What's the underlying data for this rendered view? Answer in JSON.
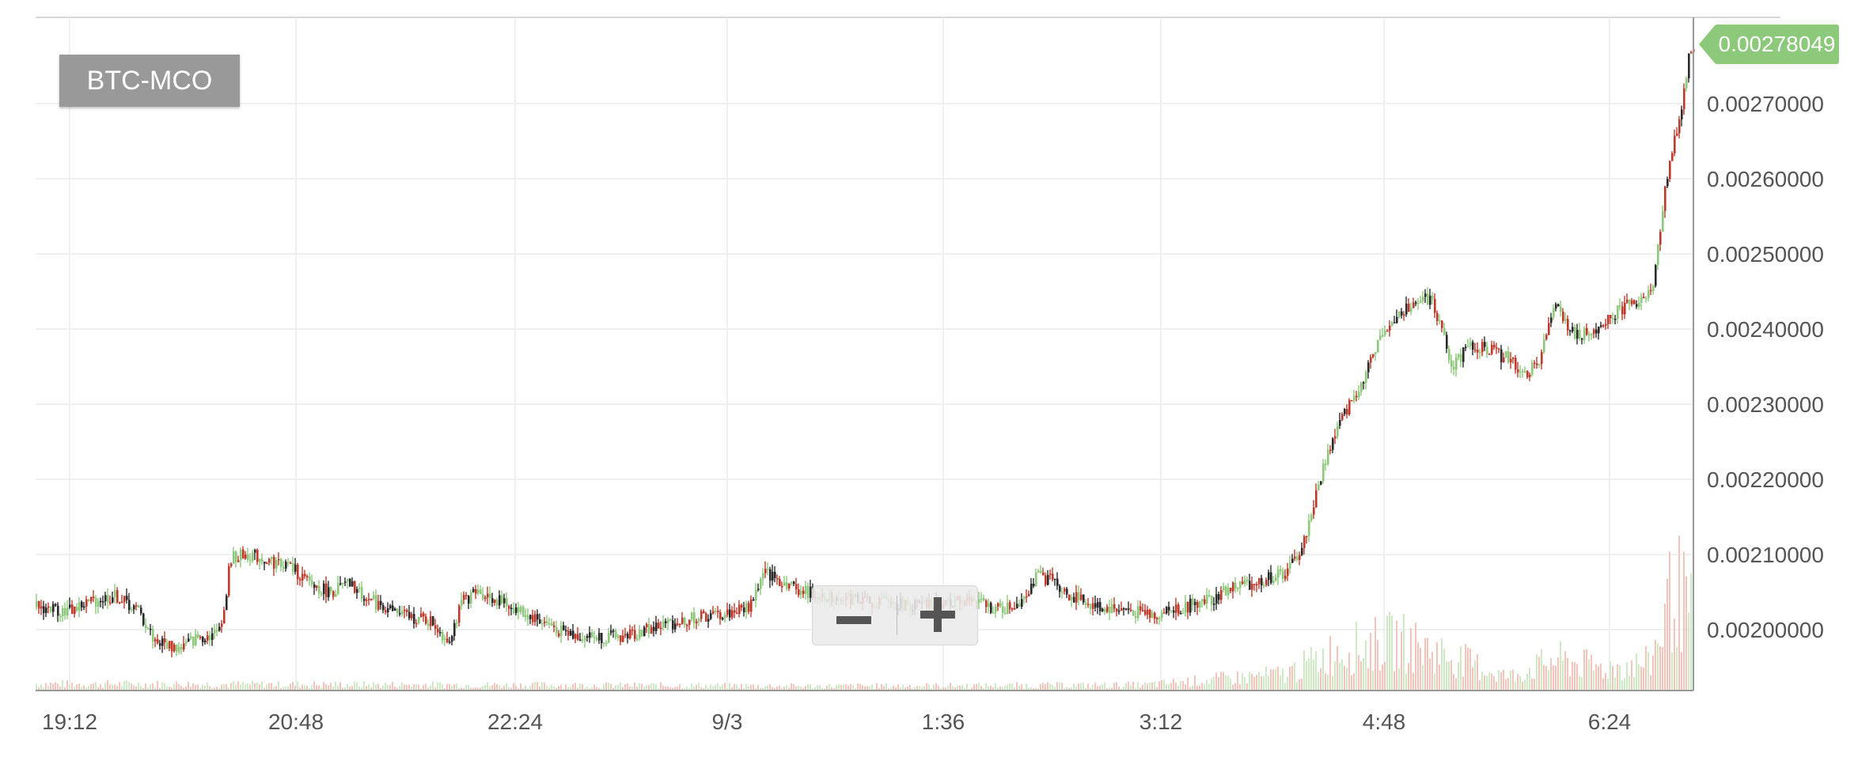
{
  "chart_data": {
    "type": "candlestick",
    "title": "BTC-MCO",
    "last_price": "0.00278049",
    "x_tick_labels": [
      "19:12",
      "20:48",
      "22:24",
      "9/3",
      "1:36",
      "3:12",
      "4:48",
      "6:24"
    ],
    "y_tick_labels": [
      "0.00200000",
      "0.00210000",
      "0.00220000",
      "0.00230000",
      "0.00240000",
      "0.00250000",
      "0.00260000",
      "0.00270000"
    ],
    "ylim": [
      0.00192,
      0.00282
    ],
    "grid": true,
    "colors": {
      "up": "#8cc97a",
      "down": "#c0392b",
      "flat": "#2a2a2a",
      "volume_up": "#cfe8c6",
      "volume_down": "#f2c4bc",
      "axis": "#999999",
      "grid": "#ececec"
    },
    "price_path": [
      [
        0,
        0.00203
      ],
      [
        40,
        0.002025
      ],
      [
        70,
        0.002038
      ],
      [
        100,
        0.002045
      ],
      [
        128,
        0.002025
      ],
      [
        150,
        0.001985
      ],
      [
        180,
        0.001975
      ],
      [
        205,
        0.00199
      ],
      [
        228,
        0.001995
      ],
      [
        238,
        0.00203
      ],
      [
        245,
        0.002095
      ],
      [
        268,
        0.0021
      ],
      [
        300,
        0.00209
      ],
      [
        320,
        0.002085
      ],
      [
        345,
        0.00206
      ],
      [
        370,
        0.00205
      ],
      [
        395,
        0.00206
      ],
      [
        420,
        0.00204
      ],
      [
        460,
        0.00202
      ],
      [
        500,
        0.00201
      ],
      [
        520,
        0.001985
      ],
      [
        540,
        0.00204
      ],
      [
        560,
        0.00205
      ],
      [
        590,
        0.002035
      ],
      [
        620,
        0.00202
      ],
      [
        650,
        0.002005
      ],
      [
        670,
        0.001995
      ],
      [
        700,
        0.00199
      ],
      [
        740,
        0.00199
      ],
      [
        790,
        0.002005
      ],
      [
        830,
        0.002015
      ],
      [
        870,
        0.00202
      ],
      [
        900,
        0.00203
      ],
      [
        920,
        0.002075
      ],
      [
        940,
        0.002065
      ],
      [
        970,
        0.00205
      ],
      [
        1000,
        0.002045
      ],
      [
        1040,
        0.00204
      ],
      [
        1080,
        0.002035
      ],
      [
        1120,
        0.00203
      ],
      [
        1160,
        0.00204
      ],
      [
        1190,
        0.002035
      ],
      [
        1220,
        0.002025
      ],
      [
        1240,
        0.002035
      ],
      [
        1265,
        0.00207
      ],
      [
        1285,
        0.002065
      ],
      [
        1305,
        0.002045
      ],
      [
        1340,
        0.00203
      ],
      [
        1380,
        0.002025
      ],
      [
        1415,
        0.00202
      ],
      [
        1450,
        0.00203
      ],
      [
        1485,
        0.00204
      ],
      [
        1510,
        0.002055
      ],
      [
        1550,
        0.002065
      ],
      [
        1580,
        0.002075
      ],
      [
        1600,
        0.00211
      ],
      [
        1615,
        0.00217
      ],
      [
        1630,
        0.00223
      ],
      [
        1645,
        0.00227
      ],
      [
        1660,
        0.0023
      ],
      [
        1680,
        0.00234
      ],
      [
        1700,
        0.0024
      ],
      [
        1720,
        0.00242
      ],
      [
        1745,
        0.00244
      ],
      [
        1762,
        0.00244
      ],
      [
        1775,
        0.0024
      ],
      [
        1790,
        0.00235
      ],
      [
        1810,
        0.00238
      ],
      [
        1830,
        0.002375
      ],
      [
        1860,
        0.00236
      ],
      [
        1880,
        0.00234
      ],
      [
        1900,
        0.00236
      ],
      [
        1918,
        0.00243
      ],
      [
        1930,
        0.00241
      ],
      [
        1950,
        0.00239
      ],
      [
        1970,
        0.0024
      ],
      [
        1990,
        0.00242
      ],
      [
        2010,
        0.00243
      ],
      [
        2030,
        0.00244
      ],
      [
        2042,
        0.00246
      ],
      [
        2050,
        0.00251
      ],
      [
        2058,
        0.00259
      ],
      [
        2068,
        0.00264
      ],
      [
        2078,
        0.00269
      ],
      [
        2088,
        0.00276
      ],
      [
        2096,
        0.00278
      ]
    ],
    "volume_profile": [
      [
        0,
        0.06
      ],
      [
        600,
        0.05
      ],
      [
        1000,
        0.04
      ],
      [
        1400,
        0.05
      ],
      [
        1580,
        0.15
      ],
      [
        1640,
        0.35
      ],
      [
        1720,
        0.45
      ],
      [
        1790,
        0.3
      ],
      [
        1860,
        0.12
      ],
      [
        1920,
        0.28
      ],
      [
        1980,
        0.2
      ],
      [
        2040,
        0.25
      ],
      [
        2070,
        0.95
      ],
      [
        2096,
        0.6
      ]
    ]
  },
  "ui": {
    "zoom_out_icon": "minus-icon",
    "zoom_in_icon": "plus-icon"
  }
}
